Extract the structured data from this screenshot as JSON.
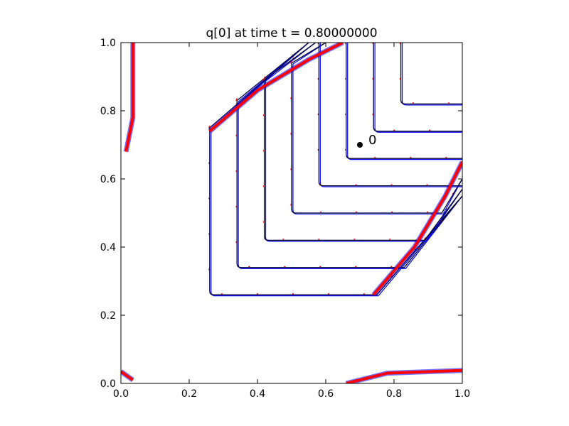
{
  "chart_data": {
    "type": "line",
    "title": "q[0] at time t =     0.80000000",
    "xlabel": "",
    "ylabel": "",
    "xlim": [
      0.0,
      1.0
    ],
    "ylim": [
      0.0,
      1.0
    ],
    "xticks": [
      "0.0",
      "0.2",
      "0.4",
      "0.6",
      "0.8",
      "1.0"
    ],
    "yticks": [
      "0.0",
      "0.2",
      "0.4",
      "0.6",
      "0.8",
      "1.0"
    ],
    "grid": false,
    "aspect": "equal",
    "colors": {
      "contour_fine": "#0000ff",
      "contour_coarse": "#ff0000",
      "dark": "#000033"
    },
    "contours": [
      {
        "corner": [
          0.26,
          0.26
        ],
        "x_end": 0.75,
        "y_end": 0.75,
        "diag": true
      },
      {
        "corner": [
          0.34,
          0.34
        ],
        "x_end": 0.83,
        "y_end": 0.83,
        "diag": true
      },
      {
        "corner": [
          0.42,
          0.42
        ],
        "x_end": 0.89,
        "y_end": 0.89,
        "diag": true
      },
      {
        "corner": [
          0.5,
          0.5
        ],
        "x_end": 0.94,
        "y_end": 0.94,
        "diag": true
      },
      {
        "corner": [
          0.58,
          0.58
        ],
        "x_end": 1.0,
        "y_end": 1.0,
        "diag": false
      },
      {
        "corner": [
          0.66,
          0.66
        ],
        "x_end": 1.0,
        "y_end": 1.0,
        "diag": false
      },
      {
        "corner": [
          0.74,
          0.74
        ],
        "x_end": 1.0,
        "y_end": 1.0,
        "diag": false
      },
      {
        "corner": [
          0.82,
          0.82
        ],
        "x_end": 1.0,
        "y_end": 1.0,
        "diag": false
      }
    ],
    "annotations": [
      {
        "x": 0.7,
        "y": 0.7,
        "text": "0"
      }
    ]
  }
}
